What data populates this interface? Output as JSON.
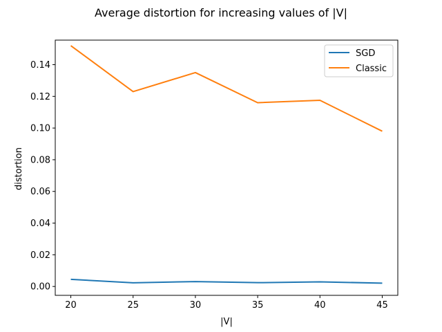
{
  "chart_data": {
    "type": "line",
    "title": "Average distortion for increasing values of |V|",
    "xlabel": "|V|",
    "ylabel": "distortion",
    "x": [
      20,
      25,
      30,
      35,
      40,
      45
    ],
    "xticks": [
      "20",
      "25",
      "30",
      "35",
      "40",
      "45"
    ],
    "yticks": [
      "0.00",
      "0.02",
      "0.04",
      "0.06",
      "0.08",
      "0.10",
      "0.12",
      "0.14"
    ],
    "xlim": [
      18.75,
      46.25
    ],
    "ylim": [
      -0.0056,
      0.1555
    ],
    "grid": false,
    "legend_position": "top-right",
    "series": [
      {
        "name": "SGD",
        "color": "#1f77b4",
        "values": [
          0.0045,
          0.0023,
          0.0031,
          0.0024,
          0.0029,
          0.0021
        ]
      },
      {
        "name": "Classic",
        "color": "#ff7f0e",
        "values": [
          0.152,
          0.123,
          0.135,
          0.116,
          0.1175,
          0.098
        ]
      }
    ]
  }
}
